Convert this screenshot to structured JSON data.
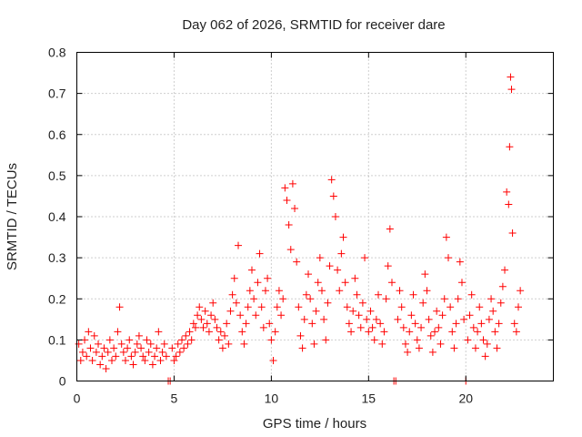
{
  "chart_data": {
    "type": "scatter",
    "title": "Day 062 of 2026, SRMTID for receiver dare",
    "xlabel": "GPS time / hours",
    "ylabel": "SRMTID / TECUs",
    "xlim": [
      0,
      24.5
    ],
    "ylim": [
      0,
      0.8
    ],
    "xticks": [
      0,
      5,
      10,
      15,
      20
    ],
    "xtick_labels": [
      "0",
      "5",
      "10",
      "15",
      "20"
    ],
    "yticks": [
      0,
      0.1,
      0.2,
      0.3,
      0.4,
      0.5,
      0.6,
      0.7,
      0.8
    ],
    "ytick_labels": [
      "0",
      "0.1",
      "0.2",
      "0.3",
      "0.4",
      "0.5",
      "0.6",
      "0.7",
      "0.8"
    ],
    "grid": true,
    "marker": "+",
    "series": [
      {
        "name": "SRMTID",
        "color": "#ff0000",
        "points": [
          [
            0.1,
            0.09
          ],
          [
            0.2,
            0.05
          ],
          [
            0.3,
            0.07
          ],
          [
            0.4,
            0.1
          ],
          [
            0.5,
            0.06
          ],
          [
            0.6,
            0.12
          ],
          [
            0.7,
            0.08
          ],
          [
            0.8,
            0.05
          ],
          [
            0.9,
            0.11
          ],
          [
            1.0,
            0.07
          ],
          [
            1.1,
            0.09
          ],
          [
            1.2,
            0.04
          ],
          [
            1.3,
            0.06
          ],
          [
            1.4,
            0.08
          ],
          [
            1.5,
            0.03
          ],
          [
            1.6,
            0.07
          ],
          [
            1.7,
            0.1
          ],
          [
            1.8,
            0.05
          ],
          [
            1.9,
            0.08
          ],
          [
            2.0,
            0.06
          ],
          [
            2.1,
            0.12
          ],
          [
            2.2,
            0.18
          ],
          [
            2.3,
            0.09
          ],
          [
            2.4,
            0.07
          ],
          [
            2.5,
            0.05
          ],
          [
            2.6,
            0.08
          ],
          [
            2.7,
            0.1
          ],
          [
            2.8,
            0.06
          ],
          [
            2.9,
            0.04
          ],
          [
            3.0,
            0.07
          ],
          [
            3.1,
            0.09
          ],
          [
            3.2,
            0.11
          ],
          [
            3.3,
            0.08
          ],
          [
            3.4,
            0.06
          ],
          [
            3.5,
            0.05
          ],
          [
            3.6,
            0.1
          ],
          [
            3.7,
            0.07
          ],
          [
            3.8,
            0.09
          ],
          [
            3.9,
            0.04
          ],
          [
            4.0,
            0.06
          ],
          [
            4.1,
            0.08
          ],
          [
            4.2,
            0.12
          ],
          [
            4.3,
            0.05
          ],
          [
            4.4,
            0.07
          ],
          [
            4.5,
            0.09
          ],
          [
            4.6,
            0.06
          ],
          [
            4.7,
            0.0
          ],
          [
            4.8,
            0.0
          ],
          [
            4.9,
            0.08
          ],
          [
            5.0,
            0.05
          ],
          [
            5.1,
            0.06
          ],
          [
            5.2,
            0.09
          ],
          [
            5.3,
            0.07
          ],
          [
            5.4,
            0.1
          ],
          [
            5.5,
            0.08
          ],
          [
            5.6,
            0.11
          ],
          [
            5.7,
            0.09
          ],
          [
            5.8,
            0.12
          ],
          [
            5.9,
            0.1
          ],
          [
            6.0,
            0.14
          ],
          [
            6.1,
            0.13
          ],
          [
            6.2,
            0.16
          ],
          [
            6.3,
            0.18
          ],
          [
            6.4,
            0.15
          ],
          [
            6.5,
            0.13
          ],
          [
            6.6,
            0.17
          ],
          [
            6.7,
            0.14
          ],
          [
            6.8,
            0.12
          ],
          [
            6.9,
            0.16
          ],
          [
            7.0,
            0.19
          ],
          [
            7.1,
            0.15
          ],
          [
            7.2,
            0.13
          ],
          [
            7.3,
            0.1
          ],
          [
            7.4,
            0.12
          ],
          [
            7.5,
            0.08
          ],
          [
            7.6,
            0.11
          ],
          [
            7.7,
            0.14
          ],
          [
            7.8,
            0.09
          ],
          [
            7.9,
            0.17
          ],
          [
            8.0,
            0.21
          ],
          [
            8.1,
            0.25
          ],
          [
            8.2,
            0.19
          ],
          [
            8.3,
            0.33
          ],
          [
            8.4,
            0.16
          ],
          [
            8.5,
            0.12
          ],
          [
            8.6,
            0.09
          ],
          [
            8.7,
            0.14
          ],
          [
            8.8,
            0.18
          ],
          [
            8.9,
            0.22
          ],
          [
            9.0,
            0.27
          ],
          [
            9.1,
            0.2
          ],
          [
            9.2,
            0.16
          ],
          [
            9.3,
            0.24
          ],
          [
            9.4,
            0.31
          ],
          [
            9.5,
            0.18
          ],
          [
            9.6,
            0.13
          ],
          [
            9.7,
            0.22
          ],
          [
            9.8,
            0.25
          ],
          [
            9.9,
            0.14
          ],
          [
            10.0,
            0.1
          ],
          [
            10.1,
            0.05
          ],
          [
            10.2,
            0.12
          ],
          [
            10.3,
            0.18
          ],
          [
            10.4,
            0.22
          ],
          [
            10.5,
            0.16
          ],
          [
            10.6,
            0.2
          ],
          [
            10.7,
            0.47
          ],
          [
            10.8,
            0.44
          ],
          [
            10.9,
            0.38
          ],
          [
            11.0,
            0.32
          ],
          [
            11.1,
            0.48
          ],
          [
            11.2,
            0.42
          ],
          [
            11.3,
            0.29
          ],
          [
            11.4,
            0.18
          ],
          [
            11.5,
            0.11
          ],
          [
            11.6,
            0.08
          ],
          [
            11.7,
            0.15
          ],
          [
            11.8,
            0.21
          ],
          [
            11.9,
            0.26
          ],
          [
            12.0,
            0.2
          ],
          [
            12.1,
            0.14
          ],
          [
            12.2,
            0.09
          ],
          [
            12.3,
            0.17
          ],
          [
            12.4,
            0.24
          ],
          [
            12.5,
            0.3
          ],
          [
            12.6,
            0.22
          ],
          [
            12.7,
            0.15
          ],
          [
            12.8,
            0.1
          ],
          [
            12.9,
            0.19
          ],
          [
            13.0,
            0.28
          ],
          [
            13.1,
            0.49
          ],
          [
            13.2,
            0.45
          ],
          [
            13.3,
            0.4
          ],
          [
            13.4,
            0.27
          ],
          [
            13.5,
            0.22
          ],
          [
            13.6,
            0.31
          ],
          [
            13.7,
            0.35
          ],
          [
            13.8,
            0.24
          ],
          [
            13.9,
            0.18
          ],
          [
            14.0,
            0.14
          ],
          [
            14.1,
            0.12
          ],
          [
            14.2,
            0.17
          ],
          [
            14.3,
            0.25
          ],
          [
            14.4,
            0.21
          ],
          [
            14.5,
            0.16
          ],
          [
            14.6,
            0.13
          ],
          [
            14.7,
            0.19
          ],
          [
            14.8,
            0.3
          ],
          [
            14.9,
            0.15
          ],
          [
            15.0,
            0.12
          ],
          [
            15.1,
            0.17
          ],
          [
            15.2,
            0.13
          ],
          [
            15.3,
            0.1
          ],
          [
            15.4,
            0.15
          ],
          [
            15.5,
            0.21
          ],
          [
            15.6,
            0.14
          ],
          [
            15.7,
            0.09
          ],
          [
            15.8,
            0.12
          ],
          [
            15.9,
            0.2
          ],
          [
            16.0,
            0.28
          ],
          [
            16.1,
            0.37
          ],
          [
            16.2,
            0.24
          ],
          [
            16.3,
            0.0
          ],
          [
            16.4,
            0.0
          ],
          [
            16.5,
            0.15
          ],
          [
            16.6,
            0.22
          ],
          [
            16.7,
            0.18
          ],
          [
            16.8,
            0.13
          ],
          [
            16.9,
            0.09
          ],
          [
            17.0,
            0.07
          ],
          [
            17.1,
            0.12
          ],
          [
            17.2,
            0.16
          ],
          [
            17.3,
            0.21
          ],
          [
            17.4,
            0.14
          ],
          [
            17.5,
            0.1
          ],
          [
            17.6,
            0.08
          ],
          [
            17.7,
            0.13
          ],
          [
            17.8,
            0.19
          ],
          [
            17.9,
            0.26
          ],
          [
            18.0,
            0.22
          ],
          [
            18.1,
            0.15
          ],
          [
            18.2,
            0.11
          ],
          [
            18.3,
            0.07
          ],
          [
            18.4,
            0.12
          ],
          [
            18.5,
            0.17
          ],
          [
            18.6,
            0.13
          ],
          [
            18.7,
            0.09
          ],
          [
            18.8,
            0.16
          ],
          [
            18.9,
            0.2
          ],
          [
            19.0,
            0.35
          ],
          [
            19.1,
            0.3
          ],
          [
            19.2,
            0.18
          ],
          [
            19.3,
            0.12
          ],
          [
            19.4,
            0.08
          ],
          [
            19.5,
            0.14
          ],
          [
            19.6,
            0.2
          ],
          [
            19.7,
            0.29
          ],
          [
            19.8,
            0.24
          ],
          [
            19.9,
            0.15
          ],
          [
            20.0,
            0.0
          ],
          [
            20.1,
            0.1
          ],
          [
            20.2,
            0.16
          ],
          [
            20.3,
            0.21
          ],
          [
            20.4,
            0.13
          ],
          [
            20.5,
            0.08
          ],
          [
            20.6,
            0.12
          ],
          [
            20.7,
            0.18
          ],
          [
            20.8,
            0.14
          ],
          [
            20.9,
            0.1
          ],
          [
            21.0,
            0.06
          ],
          [
            21.1,
            0.09
          ],
          [
            21.2,
            0.15
          ],
          [
            21.3,
            0.2
          ],
          [
            21.4,
            0.17
          ],
          [
            21.5,
            0.12
          ],
          [
            21.6,
            0.08
          ],
          [
            21.7,
            0.14
          ],
          [
            21.8,
            0.19
          ],
          [
            21.9,
            0.23
          ],
          [
            22.0,
            0.27
          ],
          [
            22.1,
            0.46
          ],
          [
            22.2,
            0.43
          ],
          [
            22.25,
            0.57
          ],
          [
            22.3,
            0.74
          ],
          [
            22.35,
            0.71
          ],
          [
            22.4,
            0.36
          ],
          [
            22.5,
            0.14
          ],
          [
            22.6,
            0.12
          ],
          [
            22.7,
            0.18
          ],
          [
            22.8,
            0.22
          ]
        ]
      }
    ]
  }
}
